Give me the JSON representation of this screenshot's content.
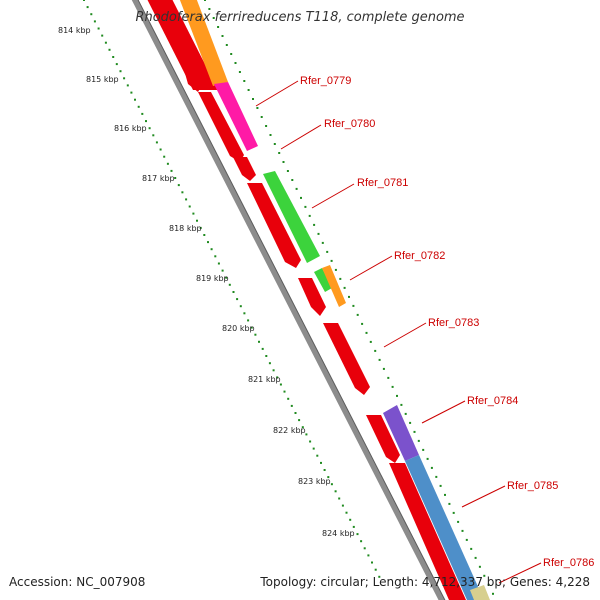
{
  "title": "Rhodoferax ferrireducens T118, complete genome",
  "accession": "Accession: NC_007908",
  "summary": "Topology: circular; Length: 4,712,337 bp; Genes: 4,228",
  "kbp_labels": [
    "814 kbp",
    "815 kbp",
    "816 kbp",
    "817 kbp",
    "818 kbp",
    "819 kbp",
    "820 kbp",
    "821 kbp",
    "822 kbp",
    "823 kbp",
    "824 kbp"
  ],
  "genes": [
    "Rfer_0779",
    "Rfer_0780",
    "Rfer_0781",
    "Rfer_0782",
    "Rfer_0783",
    "Rfer_0784",
    "Rfer_0785",
    "Rfer_0786"
  ],
  "colors": {
    "backbone": "#8c8c8c",
    "tick": "#1f8a1f",
    "cds_red": "#e8000b",
    "orange": "#ff9a1f",
    "magenta": "#ff1aa6",
    "green": "#3cd33c",
    "purple": "#7b52cc",
    "blue": "#4e8fc9",
    "khaki": "#d7cf8e",
    "label": "#cc0000"
  }
}
